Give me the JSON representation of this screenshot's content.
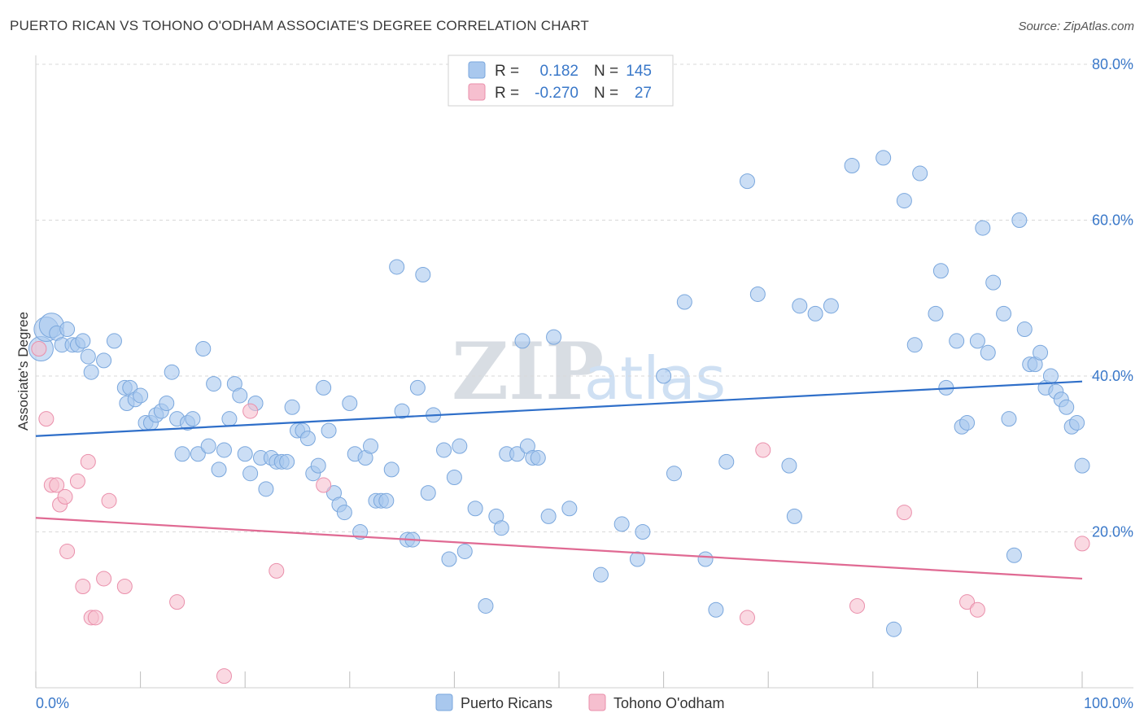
{
  "title": "PUERTO RICAN VS TOHONO O'ODHAM ASSOCIATE'S DEGREE CORRELATION CHART",
  "source": "Source: ZipAtlas.com",
  "watermark": {
    "zip": "ZIP",
    "atlas": "atlas"
  },
  "colors": {
    "blue_fill": "#a9c8ee",
    "blue_stroke": "#7aa7dd",
    "blue_line": "#2f6fc9",
    "pink_fill": "#f6bfcf",
    "pink_stroke": "#ea8fab",
    "pink_line": "#e06a93",
    "grid": "#d9d9d9",
    "label": "#3a78c9"
  },
  "legend": {
    "rows": [
      {
        "r_label": "R =",
        "r_value": "0.182",
        "n_label": "N =",
        "n_value": "145"
      },
      {
        "r_label": "R =",
        "r_value": "-0.270",
        "n_label": "N =",
        "n_value": "27"
      }
    ]
  },
  "chart_data": {
    "type": "scatter",
    "xlabel": "",
    "ylabel": "Associate's Degree",
    "xlim": [
      0,
      100
    ],
    "ylim": [
      0,
      80
    ],
    "x_tick_labels": [
      "0.0%",
      "100.0%"
    ],
    "y_ticks": [
      20,
      40,
      60,
      80
    ],
    "y_tick_labels": [
      "20.0%",
      "40.0%",
      "60.0%",
      "80.0%"
    ],
    "series": [
      {
        "name": "Puerto Ricans",
        "trend": {
          "x": [
            0,
            100
          ],
          "y": [
            32.3,
            39.3
          ]
        },
        "points": [
          [
            0.5,
            43.5
          ],
          [
            1,
            46
          ],
          [
            1.5,
            46.5
          ],
          [
            2,
            45.5
          ],
          [
            2.5,
            44
          ],
          [
            3,
            46
          ],
          [
            3.5,
            44
          ],
          [
            4,
            44
          ],
          [
            4.5,
            44.5
          ],
          [
            5,
            42.5
          ],
          [
            5.3,
            40.5
          ],
          [
            6.5,
            42
          ],
          [
            7.5,
            44.5
          ],
          [
            8.5,
            38.5
          ],
          [
            8.7,
            36.5
          ],
          [
            9,
            38.5
          ],
          [
            9.5,
            37
          ],
          [
            10,
            37.5
          ],
          [
            10.5,
            34
          ],
          [
            11,
            34
          ],
          [
            11.5,
            35
          ],
          [
            12,
            35.5
          ],
          [
            12.5,
            36.5
          ],
          [
            13,
            40.5
          ],
          [
            13.5,
            34.5
          ],
          [
            14,
            30
          ],
          [
            14.5,
            34
          ],
          [
            15,
            34.5
          ],
          [
            15.5,
            30
          ],
          [
            16,
            43.5
          ],
          [
            16.5,
            31
          ],
          [
            17,
            39
          ],
          [
            17.5,
            28
          ],
          [
            18,
            30.5
          ],
          [
            18.5,
            34.5
          ],
          [
            19,
            39
          ],
          [
            19.5,
            37.5
          ],
          [
            20,
            30
          ],
          [
            20.5,
            27.5
          ],
          [
            21,
            36.5
          ],
          [
            21.5,
            29.5
          ],
          [
            22,
            25.5
          ],
          [
            22.5,
            29.5
          ],
          [
            23,
            29
          ],
          [
            23.5,
            29
          ],
          [
            24,
            29
          ],
          [
            24.5,
            36
          ],
          [
            25,
            33
          ],
          [
            25.5,
            33
          ],
          [
            26,
            32
          ],
          [
            26.5,
            27.5
          ],
          [
            27,
            28.5
          ],
          [
            27.5,
            38.5
          ],
          [
            28,
            33
          ],
          [
            28.5,
            25
          ],
          [
            29,
            23.5
          ],
          [
            29.5,
            22.5
          ],
          [
            30,
            36.5
          ],
          [
            30.5,
            30
          ],
          [
            31,
            20
          ],
          [
            31.5,
            29.5
          ],
          [
            32,
            31
          ],
          [
            32.5,
            24
          ],
          [
            33,
            24
          ],
          [
            33.5,
            24
          ],
          [
            34,
            28
          ],
          [
            34.5,
            54
          ],
          [
            35,
            35.5
          ],
          [
            35.5,
            19
          ],
          [
            36,
            19
          ],
          [
            36.5,
            38.5
          ],
          [
            37,
            53
          ],
          [
            37.5,
            25
          ],
          [
            38,
            35
          ],
          [
            39,
            30.5
          ],
          [
            39.5,
            16.5
          ],
          [
            40,
            27
          ],
          [
            40.5,
            31
          ],
          [
            41,
            17.5
          ],
          [
            42,
            23
          ],
          [
            43,
            10.5
          ],
          [
            44,
            22
          ],
          [
            44.5,
            20.5
          ],
          [
            45,
            30
          ],
          [
            46,
            30
          ],
          [
            46.5,
            44.5
          ],
          [
            47,
            31
          ],
          [
            47.5,
            29.5
          ],
          [
            48,
            29.5
          ],
          [
            49,
            22
          ],
          [
            49.5,
            45
          ],
          [
            51,
            23
          ],
          [
            54,
            14.5
          ],
          [
            56,
            21
          ],
          [
            57.5,
            16.5
          ],
          [
            58,
            20
          ],
          [
            60,
            40
          ],
          [
            61,
            27.5
          ],
          [
            62,
            49.5
          ],
          [
            64,
            16.5
          ],
          [
            65,
            10
          ],
          [
            66,
            29
          ],
          [
            68,
            65
          ],
          [
            69,
            50.5
          ],
          [
            72,
            28.5
          ],
          [
            72.5,
            22
          ],
          [
            73,
            49
          ],
          [
            74.5,
            48
          ],
          [
            76,
            49
          ],
          [
            78,
            67
          ],
          [
            81,
            68
          ],
          [
            82,
            7.5
          ],
          [
            83,
            62.5
          ],
          [
            84,
            44
          ],
          [
            84.5,
            66
          ],
          [
            86,
            48
          ],
          [
            86.5,
            53.5
          ],
          [
            87,
            38.5
          ],
          [
            88,
            44.5
          ],
          [
            88.5,
            33.5
          ],
          [
            89,
            34
          ],
          [
            90,
            44.5
          ],
          [
            90.5,
            59
          ],
          [
            91,
            43
          ],
          [
            91.5,
            52
          ],
          [
            92.5,
            48
          ],
          [
            93,
            34.5
          ],
          [
            93.5,
            17
          ],
          [
            94,
            60
          ],
          [
            94.5,
            46
          ],
          [
            95,
            41.5
          ],
          [
            95.5,
            41.5
          ],
          [
            96,
            43
          ],
          [
            96.5,
            38.5
          ],
          [
            97,
            40
          ],
          [
            97.5,
            38
          ],
          [
            98,
            37
          ],
          [
            98.5,
            36
          ],
          [
            99,
            33.5
          ],
          [
            99.5,
            34
          ],
          [
            100,
            28.5
          ]
        ]
      },
      {
        "name": "Tohono O'odham",
        "trend": {
          "x": [
            0,
            100
          ],
          "y": [
            21.8,
            14.0
          ]
        },
        "points": [
          [
            0.3,
            43.5
          ],
          [
            1,
            34.5
          ],
          [
            1.5,
            26
          ],
          [
            2,
            26
          ],
          [
            2.3,
            23.5
          ],
          [
            2.8,
            24.5
          ],
          [
            3,
            17.5
          ],
          [
            4,
            26.5
          ],
          [
            4.5,
            13
          ],
          [
            5,
            29
          ],
          [
            5.3,
            9
          ],
          [
            5.7,
            9
          ],
          [
            6.5,
            14
          ],
          [
            7,
            24
          ],
          [
            8.5,
            13
          ],
          [
            13.5,
            11
          ],
          [
            18,
            1.5
          ],
          [
            20.5,
            35.5
          ],
          [
            23,
            15
          ],
          [
            27.5,
            26
          ],
          [
            68,
            9
          ],
          [
            69.5,
            30.5
          ],
          [
            78.5,
            10.5
          ],
          [
            83,
            22.5
          ],
          [
            89,
            11
          ],
          [
            90,
            10
          ],
          [
            100,
            18.5
          ]
        ]
      }
    ]
  },
  "bottom_legend": [
    {
      "label": "Puerto Ricans"
    },
    {
      "label": "Tohono O'odham"
    }
  ]
}
